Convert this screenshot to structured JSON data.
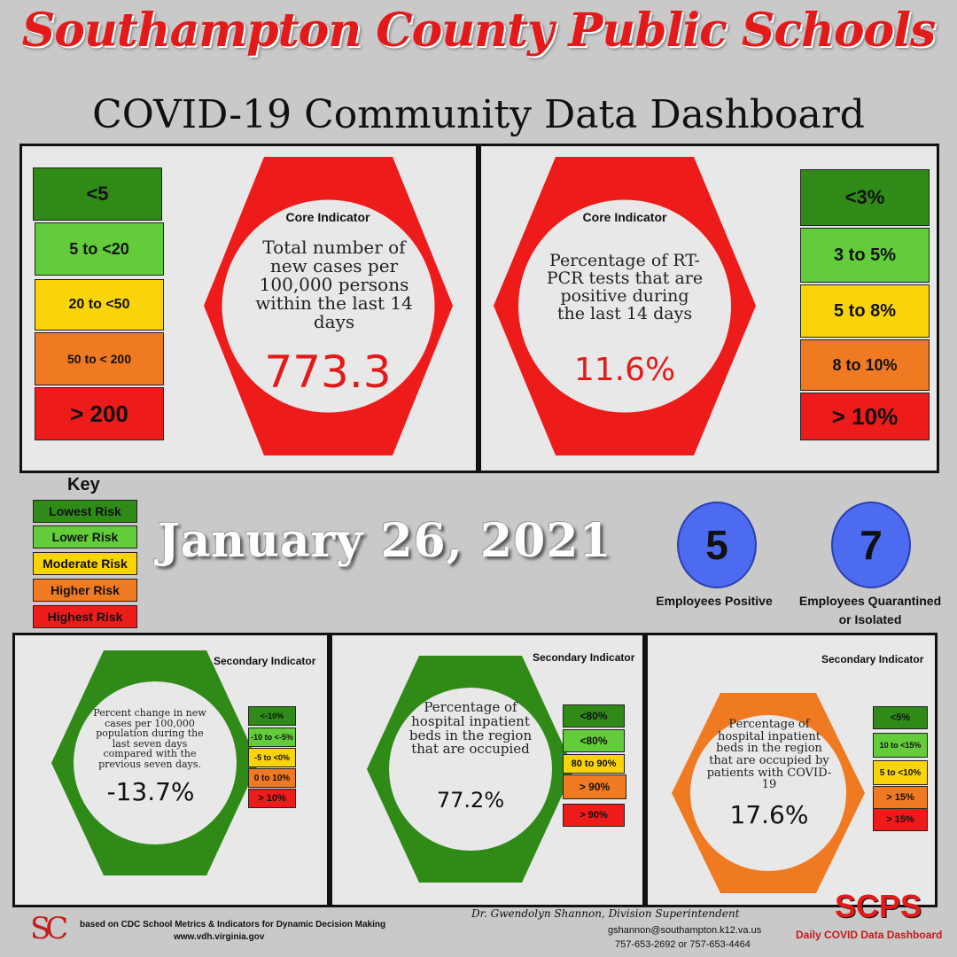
{
  "header": {
    "title": "Southampton County Public Schools",
    "subtitle": "COVID-19 Community Data Dashboard"
  },
  "core_left": {
    "scale": [
      "<5",
      "5 to  <20",
      "20 to <50",
      "50 to < 200",
      "> 200"
    ],
    "label": "Core Indicator",
    "description": "Total number of new cases per 100,000 persons within the last 14 days",
    "value": "773.3"
  },
  "core_right": {
    "scale": [
      "<3%",
      "3 to 5%",
      "5 to 8%",
      "8 to 10%",
      "> 10%"
    ],
    "label": "Core Indicator",
    "description": "Percentage of RT-PCR tests that are positive during the last 14 days",
    "value": "11.6%"
  },
  "key": {
    "title": "Key",
    "items": [
      "Lowest Risk",
      "Lower Risk",
      "Moderate Risk",
      "Higher Risk",
      "Highest Risk"
    ]
  },
  "date": "January 26, 2021",
  "employees": {
    "positive_count": "5",
    "positive_label": "Employees Positive",
    "quarantined_count": "7",
    "quarantined_label": "Employees Quarantined or Isolated"
  },
  "secondary": [
    {
      "label": "Secondary Indicator",
      "description": "Percent change in new cases per 100,000 population during the last seven days compared with the previous seven days.",
      "value": "-13.7%",
      "scale": [
        "<-10%",
        "-10 to <-5%",
        "-5 to <0%",
        "0 to 10%",
        "> 10%"
      ]
    },
    {
      "label": "Secondary Indicator",
      "description": "Percentage of hospital inpatient beds in the region that are occupied",
      "value": "77.2%",
      "scale": [
        "<80%",
        "<80%",
        "80 to 90%",
        "> 90%",
        "> 90%"
      ]
    },
    {
      "label": "Secondary Indicator",
      "description": "Percentage of hospital inpatient beds in the region that are occupied by patients with COVID-19",
      "value": "17.6%",
      "scale": [
        "<5%",
        "10 to <15%",
        "5 to <10%",
        "> 15%",
        "> 15%"
      ]
    }
  ],
  "footer": {
    "logo": "SC",
    "source_line1": "based on CDC School Metrics & Indicators for Dynamic Decision Making",
    "source_line2": "www.vdh.virginia.gov",
    "superintendent": "Dr. Gwendolyn Shannon, Division Superintendent",
    "email": "gshannon@southampton.k12.va.us",
    "phone": "757-653-2692 or 757-653-4464",
    "brand": "SCPS",
    "brand_sub": "Daily COVID Data Dashboard"
  },
  "colors": {
    "dark_green": "#2f8a17",
    "light_green": "#62cc3a",
    "yellow": "#f9d40a",
    "orange": "#f07a22",
    "red": "#ee1b1b",
    "blue": "#4d6bf0"
  }
}
